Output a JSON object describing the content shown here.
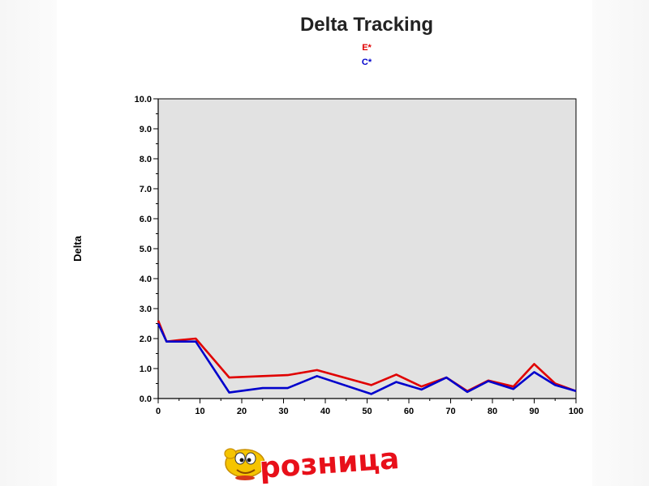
{
  "chart_data": {
    "type": "line",
    "title": "Delta Tracking",
    "ylabel": "Delta",
    "xlabel": "",
    "xlim": [
      0,
      100
    ],
    "ylim": [
      0.0,
      10.0
    ],
    "x_ticks": [
      "0",
      "10",
      "20",
      "30",
      "40",
      "50",
      "60",
      "70",
      "80",
      "90",
      "100"
    ],
    "y_ticks": [
      "0.0",
      "1.0",
      "2.0",
      "3.0",
      "4.0",
      "5.0",
      "6.0",
      "7.0",
      "8.0",
      "9.0",
      "10.0"
    ],
    "grid": false,
    "legend_position": "top-center",
    "plot_background": "#e2e2e2",
    "series": [
      {
        "name": "E*",
        "color": "#e00000",
        "points": [
          [
            0,
            2.6
          ],
          [
            2,
            1.9
          ],
          [
            5,
            1.95
          ],
          [
            9,
            2.0
          ],
          [
            17,
            0.7
          ],
          [
            25,
            0.75
          ],
          [
            31,
            0.78
          ],
          [
            38,
            0.95
          ],
          [
            51,
            0.45
          ],
          [
            57,
            0.8
          ],
          [
            63,
            0.4
          ],
          [
            69,
            0.7
          ],
          [
            74,
            0.25
          ],
          [
            79,
            0.6
          ],
          [
            85,
            0.4
          ],
          [
            90,
            1.15
          ],
          [
            95,
            0.5
          ],
          [
            100,
            0.25
          ]
        ]
      },
      {
        "name": "C*",
        "color": "#0000cc",
        "points": [
          [
            0,
            2.5
          ],
          [
            2,
            1.9
          ],
          [
            5,
            1.9
          ],
          [
            9,
            1.9
          ],
          [
            17,
            0.2
          ],
          [
            25,
            0.35
          ],
          [
            31,
            0.35
          ],
          [
            38,
            0.75
          ],
          [
            51,
            0.15
          ],
          [
            57,
            0.55
          ],
          [
            63,
            0.3
          ],
          [
            69,
            0.7
          ],
          [
            74,
            0.22
          ],
          [
            79,
            0.58
          ],
          [
            85,
            0.32
          ],
          [
            90,
            0.88
          ],
          [
            95,
            0.45
          ],
          [
            100,
            0.25
          ]
        ]
      }
    ]
  },
  "logo": {
    "text": "розница",
    "colors": {
      "text": "#e8101a",
      "mascot": "#f5c400"
    }
  }
}
